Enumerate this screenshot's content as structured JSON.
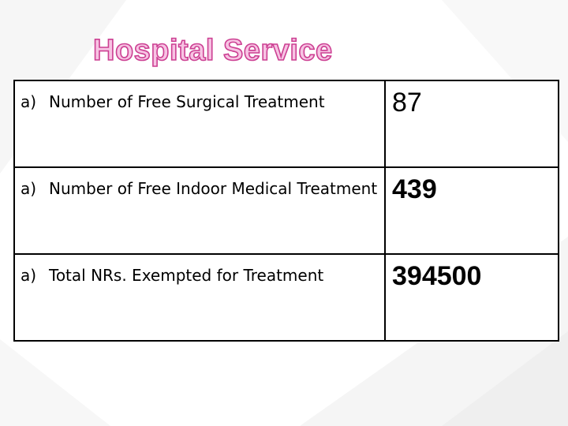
{
  "title": "Hospital Service",
  "rows": [
    {
      "marker": "a)",
      "label": "Number of Free Surgical Treatment",
      "value": "87"
    },
    {
      "marker": "a)",
      "label": "Number of Free Indoor Medical Treatment",
      "value": "439"
    },
    {
      "marker": "a)",
      "label": "Total NRs. Exempted for Treatment",
      "value": "394500"
    }
  ],
  "colors": {
    "title_fill": "#f7c3e3",
    "title_outline": "#cc3f92",
    "border": "#000000"
  }
}
